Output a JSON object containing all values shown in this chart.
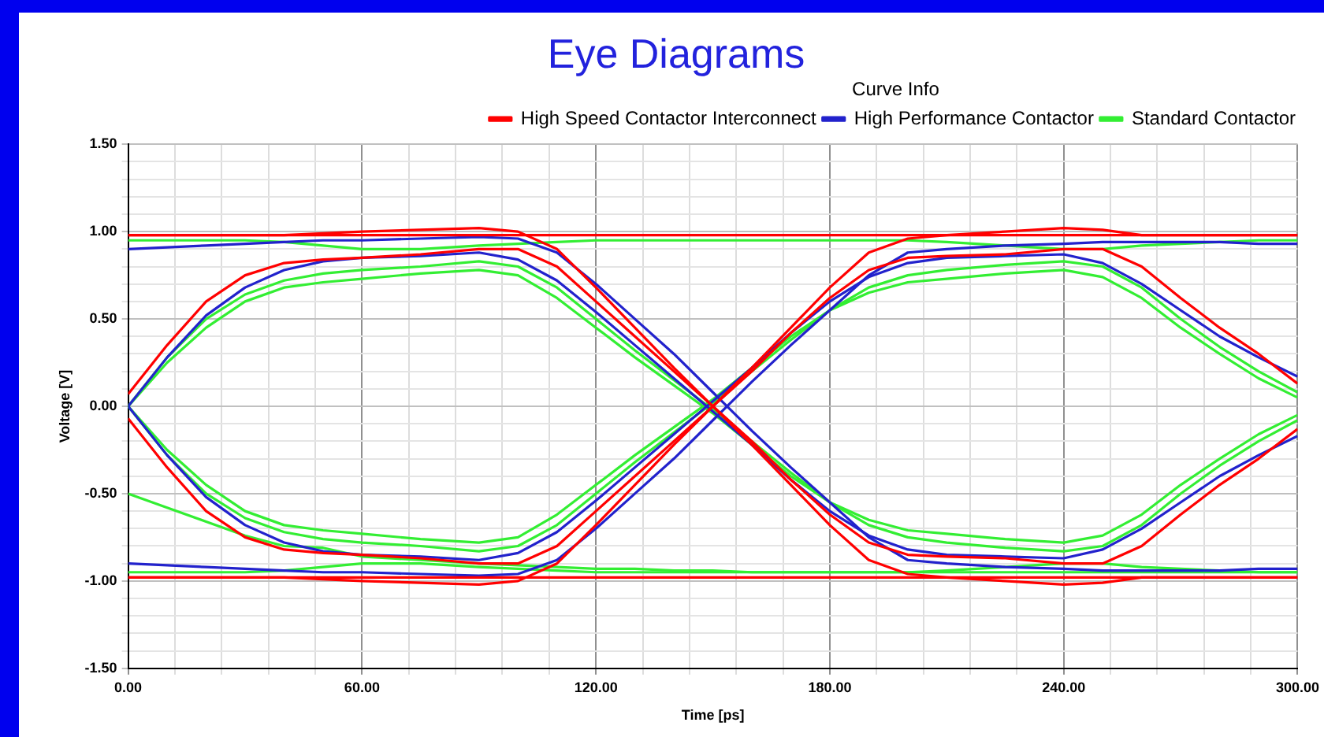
{
  "chart_data": {
    "type": "line",
    "title": "Eye Diagrams",
    "xlabel": "Time [ps]",
    "ylabel": "Voltage [V]",
    "legend_title": "Curve Info",
    "legend": "top right",
    "grid": true,
    "marker": "none",
    "line_style": "solid",
    "xlim": [
      0,
      300
    ],
    "ylim": [
      -1.5,
      1.5
    ],
    "xticks": [
      {
        "value": 0,
        "label": "0.00"
      },
      {
        "value": 12,
        "label": null
      },
      {
        "value": 24,
        "label": null
      },
      {
        "value": 36,
        "label": null
      },
      {
        "value": 48,
        "label": null
      },
      {
        "value": 60,
        "label": "60.00"
      },
      {
        "value": 72,
        "label": null
      },
      {
        "value": 84,
        "label": null
      },
      {
        "value": 96,
        "label": null
      },
      {
        "value": 108,
        "label": null
      },
      {
        "value": 120,
        "label": "120.00"
      },
      {
        "value": 132,
        "label": null
      },
      {
        "value": 144,
        "label": null
      },
      {
        "value": 156,
        "label": null
      },
      {
        "value": 168,
        "label": null
      },
      {
        "value": 180,
        "label": "180.00"
      },
      {
        "value": 192,
        "label": null
      },
      {
        "value": 204,
        "label": null
      },
      {
        "value": 216,
        "label": null
      },
      {
        "value": 228,
        "label": null
      },
      {
        "value": 240,
        "label": "240.00"
      },
      {
        "value": 252,
        "label": null
      },
      {
        "value": 264,
        "label": null
      },
      {
        "value": 276,
        "label": null
      },
      {
        "value": 288,
        "label": null
      },
      {
        "value": 300,
        "label": "300.00"
      }
    ],
    "yticks": [
      {
        "value": -1.5,
        "label": "-1.50"
      },
      {
        "value": -1.4,
        "label": null
      },
      {
        "value": -1.3,
        "label": null
      },
      {
        "value": -1.2,
        "label": null
      },
      {
        "value": -1.1,
        "label": null
      },
      {
        "value": -1.0,
        "label": "-1.00"
      },
      {
        "value": -0.9,
        "label": null
      },
      {
        "value": -0.8,
        "label": null
      },
      {
        "value": -0.7,
        "label": null
      },
      {
        "value": -0.6,
        "label": null
      },
      {
        "value": -0.5,
        "label": "-0.50"
      },
      {
        "value": -0.4,
        "label": null
      },
      {
        "value": -0.3,
        "label": null
      },
      {
        "value": -0.2,
        "label": null
      },
      {
        "value": -0.1,
        "label": null
      },
      {
        "value": 0,
        "label": "0.00"
      },
      {
        "value": 0.1,
        "label": null
      },
      {
        "value": 0.2,
        "label": null
      },
      {
        "value": 0.3,
        "label": null
      },
      {
        "value": 0.4,
        "label": null
      },
      {
        "value": 0.5,
        "label": "0.50"
      },
      {
        "value": 0.6,
        "label": null
      },
      {
        "value": 0.7,
        "label": null
      },
      {
        "value": 0.8,
        "label": null
      },
      {
        "value": 0.9,
        "label": null
      },
      {
        "value": 1.0,
        "label": "1.00"
      },
      {
        "value": 1.1,
        "label": null
      },
      {
        "value": 1.2,
        "label": null
      },
      {
        "value": 1.3,
        "label": null
      },
      {
        "value": 1.4,
        "label": null
      },
      {
        "value": 1.5,
        "label": "1.50"
      }
    ],
    "x": [
      0,
      10,
      20,
      30,
      40,
      50,
      60,
      75,
      90,
      100,
      110,
      120,
      130,
      140,
      150,
      160,
      170,
      180,
      190,
      200,
      210,
      225,
      240,
      250,
      260,
      270,
      280,
      290,
      300
    ],
    "series": [
      {
        "name": "High Speed Contactor Interconnect",
        "color": "#ff0000",
        "values": [
          0.07,
          0.35,
          0.6,
          0.75,
          0.82,
          0.84,
          0.85,
          0.87,
          0.9,
          0.9,
          0.8,
          0.6,
          0.4,
          0.2,
          0.0,
          -0.2,
          -0.42,
          -0.62,
          -0.78,
          -0.85,
          -0.86,
          -0.87,
          -0.9,
          -0.9,
          -0.8,
          -0.62,
          -0.45,
          -0.3,
          -0.13
        ]
      },
      {
        "color": "#ff0000",
        "values": [
          -0.07,
          -0.35,
          -0.6,
          -0.75,
          -0.82,
          -0.84,
          -0.85,
          -0.87,
          -0.9,
          -0.9,
          -0.8,
          -0.6,
          -0.4,
          -0.2,
          0.0,
          0.2,
          0.42,
          0.62,
          0.78,
          0.85,
          0.86,
          0.87,
          0.9,
          0.9,
          0.8,
          0.62,
          0.45,
          0.3,
          0.13
        ]
      },
      {
        "color": "#ff0000",
        "values": [
          0.98,
          0.98,
          0.98,
          0.98,
          0.98,
          0.99,
          1.0,
          1.01,
          1.02,
          1.0,
          0.9,
          0.68,
          0.45,
          0.22,
          0.0,
          -0.22,
          -0.45,
          -0.68,
          -0.88,
          -0.96,
          -0.98,
          -0.98,
          -0.98,
          -0.98,
          -0.98,
          -0.98,
          -0.98,
          -0.98,
          -0.98
        ]
      },
      {
        "color": "#ff0000",
        "values": [
          -0.98,
          -0.98,
          -0.98,
          -0.98,
          -0.98,
          -0.99,
          -1.0,
          -1.01,
          -1.02,
          -1.0,
          -0.9,
          -0.68,
          -0.45,
          -0.22,
          0.0,
          0.22,
          0.45,
          0.68,
          0.88,
          0.96,
          0.98,
          0.98,
          0.98,
          0.98,
          0.98,
          0.98,
          0.98,
          0.98,
          0.98
        ]
      },
      {
        "color": "#ff0000",
        "values": [
          0.98,
          0.98,
          0.98,
          0.98,
          0.98,
          0.98,
          0.98,
          0.98,
          0.98,
          0.98,
          0.98,
          0.98,
          0.98,
          0.98,
          0.98,
          0.98,
          0.98,
          0.98,
          0.98,
          0.98,
          0.98,
          1.0,
          1.02,
          1.01,
          0.98,
          0.98,
          0.98,
          0.98,
          0.98
        ]
      },
      {
        "color": "#ff0000",
        "values": [
          -0.98,
          -0.98,
          -0.98,
          -0.98,
          -0.98,
          -0.98,
          -0.98,
          -0.98,
          -0.98,
          -0.98,
          -0.98,
          -0.98,
          -0.98,
          -0.98,
          -0.98,
          -0.98,
          -0.98,
          -0.98,
          -0.98,
          -0.98,
          -0.98,
          -1.0,
          -1.02,
          -1.01,
          -0.98,
          -0.98,
          -0.98,
          -0.98,
          -0.98
        ]
      },
      {
        "name": "High Performance Contactor",
        "color": "#2222cc",
        "values": [
          0.0,
          0.28,
          0.52,
          0.68,
          0.78,
          0.83,
          0.85,
          0.86,
          0.88,
          0.84,
          0.72,
          0.54,
          0.35,
          0.16,
          -0.03,
          -0.22,
          -0.42,
          -0.6,
          -0.74,
          -0.82,
          -0.85,
          -0.86,
          -0.87,
          -0.82,
          -0.7,
          -0.55,
          -0.4,
          -0.28,
          -0.17
        ]
      },
      {
        "color": "#2222cc",
        "values": [
          0.0,
          -0.28,
          -0.52,
          -0.68,
          -0.78,
          -0.83,
          -0.85,
          -0.86,
          -0.88,
          -0.84,
          -0.72,
          -0.54,
          -0.35,
          -0.16,
          0.03,
          0.22,
          0.42,
          0.6,
          0.74,
          0.82,
          0.85,
          0.86,
          0.87,
          0.82,
          0.7,
          0.55,
          0.4,
          0.28,
          0.17
        ]
      },
      {
        "color": "#2222cc",
        "values": [
          0.9,
          0.91,
          0.92,
          0.93,
          0.94,
          0.95,
          0.95,
          0.96,
          0.97,
          0.96,
          0.88,
          0.7,
          0.5,
          0.3,
          0.08,
          -0.14,
          -0.35,
          -0.55,
          -0.75,
          -0.88,
          -0.9,
          -0.92,
          -0.93,
          -0.94,
          -0.94,
          -0.94,
          -0.94,
          -0.93,
          -0.93
        ]
      },
      {
        "color": "#2222cc",
        "values": [
          -0.9,
          -0.91,
          -0.92,
          -0.93,
          -0.94,
          -0.95,
          -0.95,
          -0.96,
          -0.97,
          -0.96,
          -0.88,
          -0.7,
          -0.5,
          -0.3,
          -0.08,
          0.14,
          0.35,
          0.55,
          0.75,
          0.88,
          0.9,
          0.92,
          0.93,
          0.94,
          0.94,
          0.94,
          0.94,
          0.93,
          0.93
        ]
      },
      {
        "name": "Standard Contactor",
        "color": "#33ee33",
        "values": [
          0.0,
          0.25,
          0.45,
          0.6,
          0.68,
          0.71,
          0.73,
          0.76,
          0.78,
          0.75,
          0.62,
          0.45,
          0.28,
          0.12,
          -0.04,
          -0.22,
          -0.4,
          -0.55,
          -0.65,
          -0.71,
          -0.73,
          -0.76,
          -0.78,
          -0.74,
          -0.62,
          -0.45,
          -0.3,
          -0.16,
          -0.05
        ]
      },
      {
        "color": "#33ee33",
        "values": [
          0.0,
          0.28,
          0.5,
          0.64,
          0.72,
          0.76,
          0.78,
          0.8,
          0.83,
          0.8,
          0.68,
          0.5,
          0.32,
          0.15,
          -0.02,
          -0.2,
          -0.38,
          -0.55,
          -0.68,
          -0.75,
          -0.78,
          -0.81,
          -0.83,
          -0.8,
          -0.68,
          -0.5,
          -0.34,
          -0.2,
          -0.08
        ]
      },
      {
        "color": "#33ee33",
        "values": [
          0.0,
          -0.25,
          -0.45,
          -0.6,
          -0.68,
          -0.71,
          -0.73,
          -0.76,
          -0.78,
          -0.75,
          -0.62,
          -0.45,
          -0.28,
          -0.12,
          0.04,
          0.22,
          0.4,
          0.55,
          0.65,
          0.71,
          0.73,
          0.76,
          0.78,
          0.74,
          0.62,
          0.45,
          0.3,
          0.16,
          0.05
        ]
      },
      {
        "color": "#33ee33",
        "values": [
          0.0,
          -0.28,
          -0.5,
          -0.64,
          -0.72,
          -0.76,
          -0.78,
          -0.8,
          -0.83,
          -0.8,
          -0.68,
          -0.5,
          -0.32,
          -0.15,
          0.02,
          0.2,
          0.38,
          0.55,
          0.68,
          0.75,
          0.78,
          0.81,
          0.83,
          0.8,
          0.68,
          0.5,
          0.34,
          0.2,
          0.08
        ]
      },
      {
        "color": "#33ee33",
        "values": [
          0.95,
          0.95,
          0.95,
          0.95,
          0.94,
          0.92,
          0.9,
          0.9,
          0.92,
          0.93,
          0.94,
          0.95,
          0.95,
          0.95,
          0.95,
          0.95,
          0.95,
          0.95,
          0.95,
          0.95,
          0.94,
          0.92,
          0.9,
          0.9,
          0.92,
          0.93,
          0.94,
          0.95,
          0.95
        ]
      },
      {
        "color": "#33ee33",
        "values": [
          -0.95,
          -0.95,
          -0.95,
          -0.95,
          -0.94,
          -0.92,
          -0.9,
          -0.9,
          -0.92,
          -0.93,
          -0.94,
          -0.95,
          -0.95,
          -0.95,
          -0.95,
          -0.95,
          -0.95,
          -0.95,
          -0.95,
          -0.95,
          -0.94,
          -0.92,
          -0.9,
          -0.9,
          -0.92,
          -0.93,
          -0.94,
          -0.95,
          -0.95
        ]
      },
      {
        "color": "#33ee33",
        "values": [
          -0.5,
          -0.58,
          -0.66,
          -0.74,
          -0.8,
          -0.81,
          -0.86,
          -0.88,
          -0.9,
          -0.91,
          -0.92,
          -0.93,
          -0.93,
          -0.94,
          -0.94,
          -0.95,
          -0.95,
          -0.95,
          -0.95,
          -0.95,
          -0.95,
          -0.95,
          -0.95,
          -0.95,
          -0.95,
          -0.95,
          -0.95,
          -0.95,
          -0.95
        ]
      }
    ]
  }
}
